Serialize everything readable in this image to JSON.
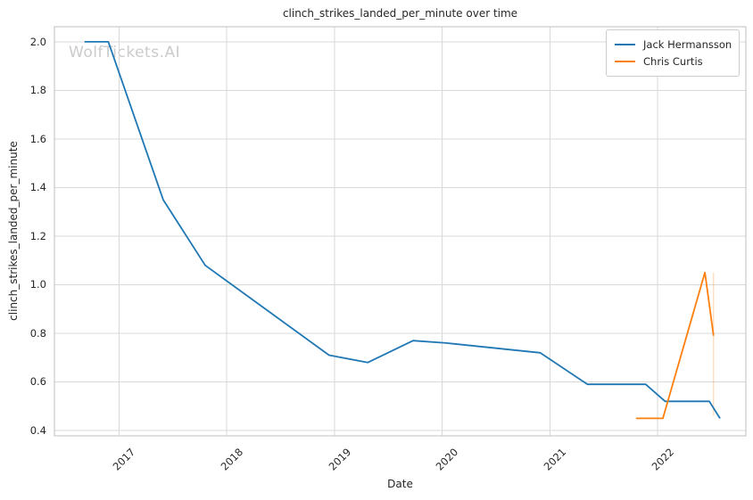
{
  "watermark": "WolfTickets.AI",
  "chart_data": {
    "type": "line",
    "title": "clinch_strikes_landed_per_minute over time",
    "xlabel": "Date",
    "ylabel": "clinch_strikes_landed_per_minute",
    "grid": true,
    "legend_position": "upper right",
    "xlim": [
      2016.4,
      2022.82
    ],
    "ylim": [
      0.378,
      2.062
    ],
    "x_ticks": [
      2017,
      2018,
      2019,
      2020,
      2021,
      2022
    ],
    "y_ticks": [
      0.4,
      0.6,
      0.8,
      1.0,
      1.2,
      1.4,
      1.6,
      1.8,
      2.0
    ],
    "grid_color": "#d9d9d9",
    "spine_color": "#bfbfbf",
    "series": [
      {
        "name": "Jack Hermansson",
        "color": "#1f77b4",
        "x": [
          2016.68,
          2016.9,
          2017.41,
          2017.8,
          2018.95,
          2019.31,
          2019.73,
          2020.04,
          2020.91,
          2021.35,
          2021.89,
          2022.07,
          2022.48,
          2022.58
        ],
        "y": [
          2.0,
          2.0,
          1.35,
          1.08,
          0.71,
          0.68,
          0.77,
          0.76,
          0.72,
          0.59,
          0.59,
          0.52,
          0.52,
          0.45
        ]
      },
      {
        "name": "Chris Curtis",
        "color": "#ff7f0e",
        "x": [
          2021.8,
          2022.05,
          2022.44,
          2022.52
        ],
        "y": [
          0.45,
          0.45,
          1.05,
          0.79
        ]
      }
    ],
    "annotation_vline": {
      "x": 2022.52,
      "y_from": 0.46,
      "y_to": 1.05,
      "color": "#ff7f0e",
      "opacity": 0.3
    }
  }
}
